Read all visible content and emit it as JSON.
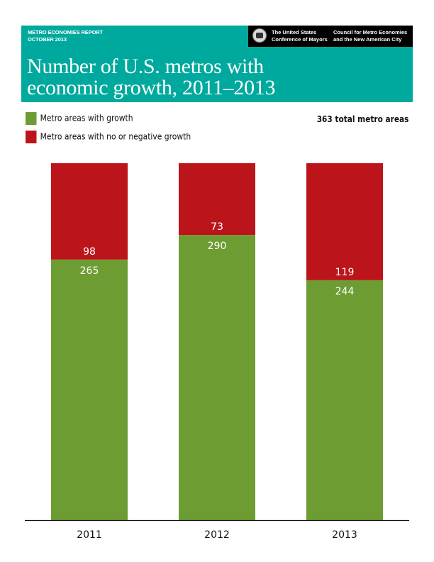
{
  "header": {
    "report_name": "METRO ECONOMIES REPORT",
    "report_date": "OCTOBER 2013",
    "org1_line1": "The United States",
    "org1_line2": "Conference of Mayors",
    "org2_line1": "Council for Metro Economies",
    "org2_line2": "and the New American City",
    "logo_icon": "seal-icon",
    "title_line1": "Number of  U.S. metros with",
    "title_line2": "economic growth, 2011–2013"
  },
  "colors": {
    "header_bg": "#00a99d",
    "growth": "#6d9c32",
    "no_growth": "#bb151b",
    "axis": "#111111"
  },
  "chart_data": {
    "type": "bar",
    "stacked": true,
    "title": "Number of U.S. metros with economic growth, 2011–2013",
    "xlabel": "",
    "ylabel": "",
    "categories": [
      "2011",
      "2012",
      "2013"
    ],
    "series": [
      {
        "name": "Metro areas with growth",
        "color": "#6d9c32",
        "values": [
          265,
          290,
          244
        ]
      },
      {
        "name": "Metro areas with no or negative growth",
        "color": "#bb151b",
        "values": [
          98,
          73,
          119
        ]
      }
    ],
    "ylim": [
      0,
      363
    ],
    "total_note": "363 total metro areas",
    "legend_position": "top-left",
    "grid": false
  }
}
